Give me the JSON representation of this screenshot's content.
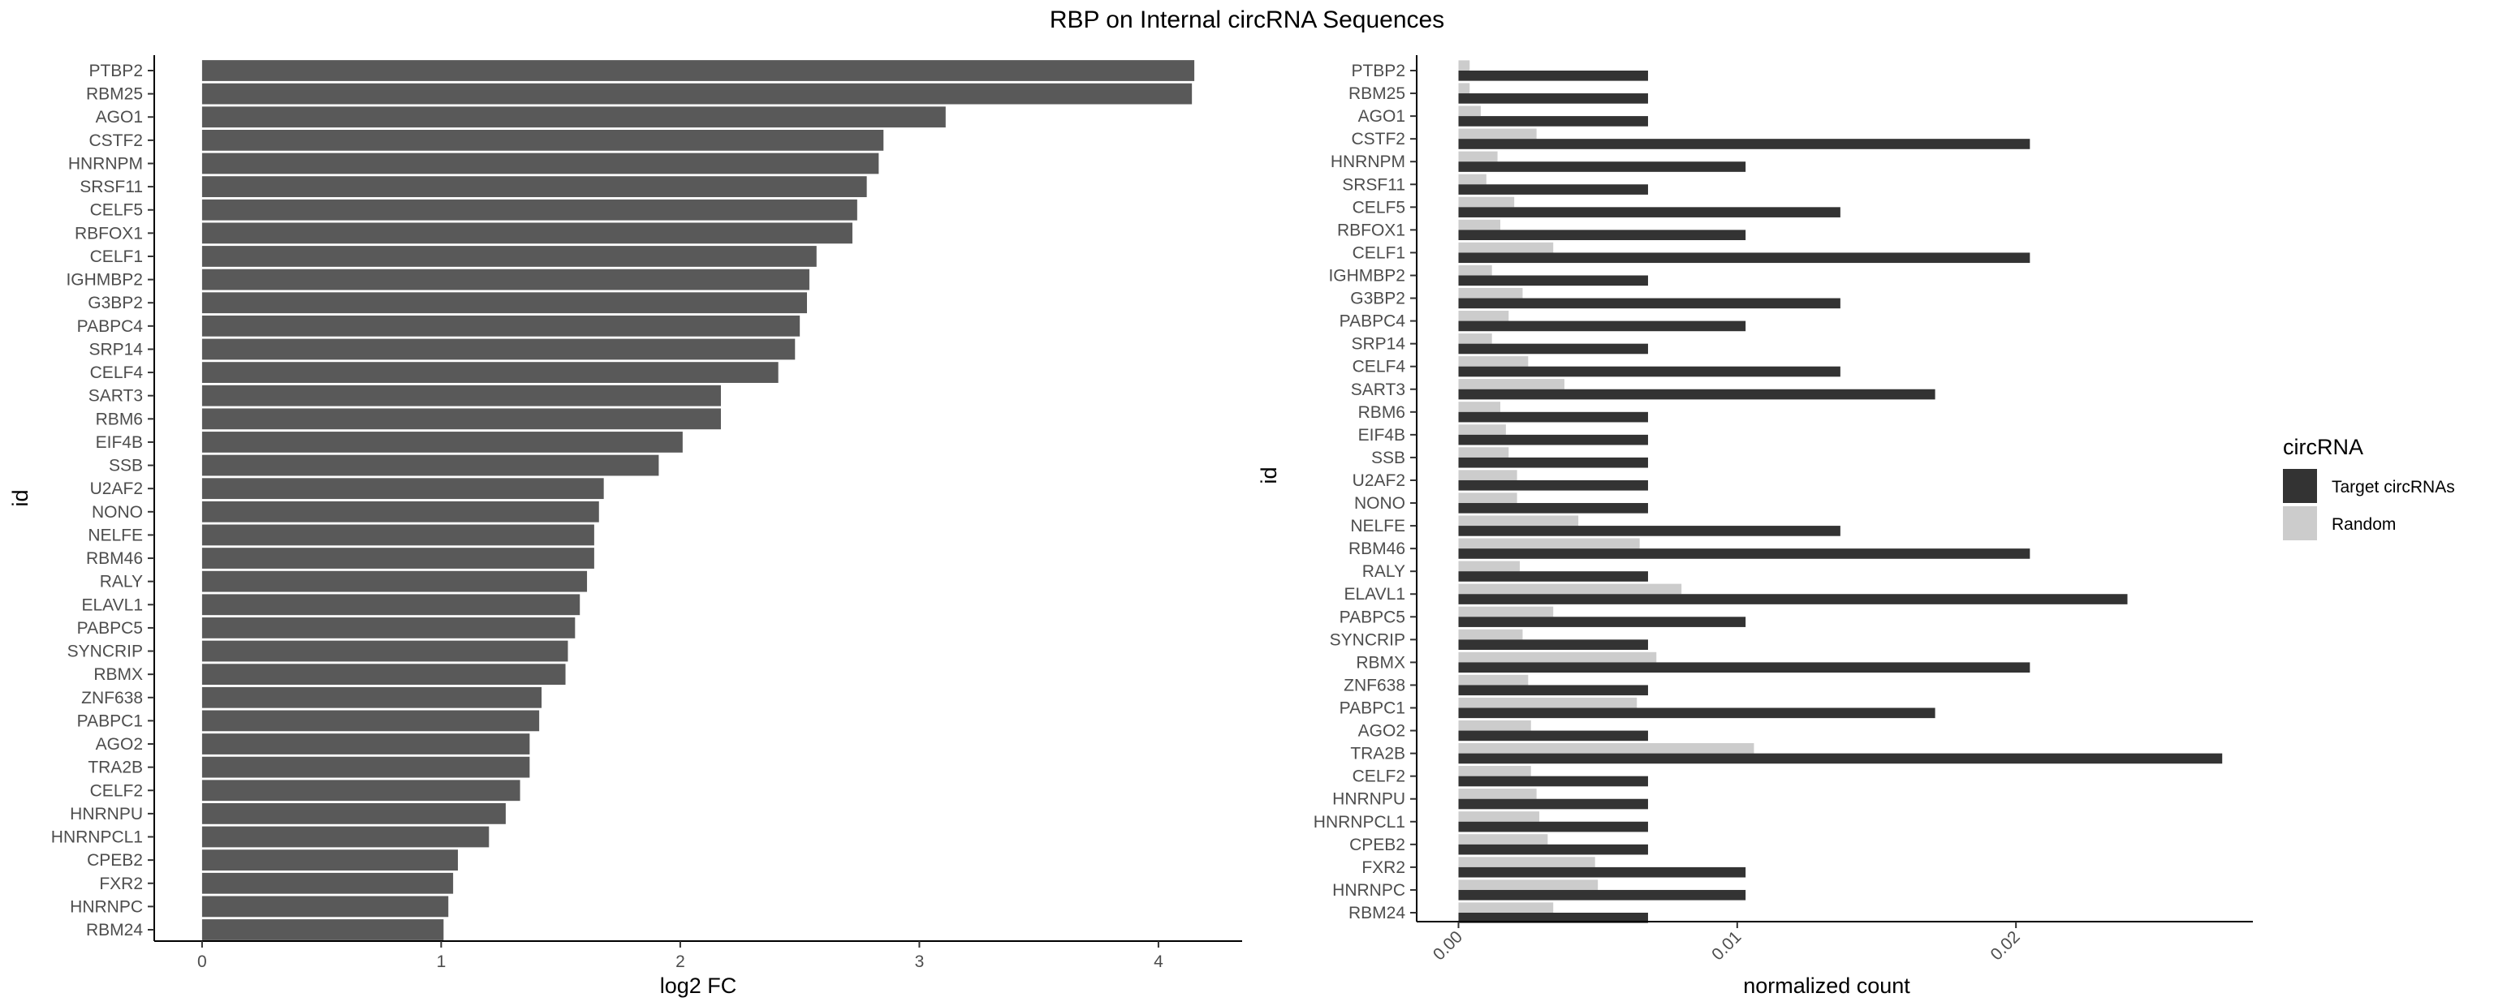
{
  "title": "RBP on Internal circRNA Sequences",
  "chart_data": [
    {
      "type": "bar",
      "orientation": "horizontal",
      "title": "",
      "xlabel": "log2 FC",
      "ylabel": "id",
      "xlim": [
        -0.2,
        4.35
      ],
      "xticks": [
        "0",
        "1",
        "2",
        "3",
        "4"
      ],
      "bar_color": "#595959",
      "categories": [
        "PTBP2",
        "RBM25",
        "AGO1",
        "CSTF2",
        "HNRNPM",
        "SRSF11",
        "CELF5",
        "RBFOX1",
        "CELF1",
        "IGHMBP2",
        "G3BP2",
        "PABPC4",
        "SRP14",
        "CELF4",
        "SART3",
        "RBM6",
        "EIF4B",
        "SSB",
        "U2AF2",
        "NONO",
        "NELFE",
        "RBM46",
        "RALY",
        "ELAVL1",
        "PABPC5",
        "SYNCRIP",
        "RBMX",
        "ZNF638",
        "PABPC1",
        "AGO2",
        "TRA2B",
        "CELF2",
        "HNRNPU",
        "HNRNPCL1",
        "CPEB2",
        "FXR2",
        "HNRNPC",
        "RBM24"
      ],
      "values": [
        4.15,
        4.14,
        3.11,
        2.85,
        2.83,
        2.78,
        2.74,
        2.72,
        2.57,
        2.54,
        2.53,
        2.5,
        2.48,
        2.41,
        2.17,
        2.17,
        2.01,
        1.91,
        1.68,
        1.66,
        1.64,
        1.64,
        1.61,
        1.58,
        1.56,
        1.53,
        1.52,
        1.42,
        1.41,
        1.37,
        1.37,
        1.33,
        1.27,
        1.2,
        1.07,
        1.05,
        1.03,
        1.01
      ],
      "grid": false
    },
    {
      "type": "bar",
      "orientation": "horizontal",
      "title": "",
      "xlabel": "normalized count",
      "ylabel": "id",
      "xlim": [
        -0.0015,
        0.0285
      ],
      "xticks": [
        "0.00",
        "0.01",
        "0.02"
      ],
      "legend_title": "circRNA",
      "legend_position": "right",
      "categories": [
        "PTBP2",
        "RBM25",
        "AGO1",
        "CSTF2",
        "HNRNPM",
        "SRSF11",
        "CELF5",
        "RBFOX1",
        "CELF1",
        "IGHMBP2",
        "G3BP2",
        "PABPC4",
        "SRP14",
        "CELF4",
        "SART3",
        "RBM6",
        "EIF4B",
        "SSB",
        "U2AF2",
        "NONO",
        "NELFE",
        "RBM46",
        "RALY",
        "ELAVL1",
        "PABPC5",
        "SYNCRIP",
        "RBMX",
        "ZNF638",
        "PABPC1",
        "AGO2",
        "TRA2B",
        "CELF2",
        "HNRNPU",
        "HNRNPCL1",
        "CPEB2",
        "FXR2",
        "HNRNPC",
        "RBM24"
      ],
      "series": [
        {
          "name": "Target circRNAs",
          "color": "#333333",
          "values": [
            0.0068,
            0.0068,
            0.0068,
            0.0205,
            0.0103,
            0.0068,
            0.0137,
            0.0103,
            0.0205,
            0.0068,
            0.0137,
            0.0103,
            0.0068,
            0.0137,
            0.0171,
            0.0068,
            0.0068,
            0.0068,
            0.0068,
            0.0068,
            0.0137,
            0.0205,
            0.0068,
            0.024,
            0.0103,
            0.0068,
            0.0205,
            0.0068,
            0.0171,
            0.0068,
            0.0274,
            0.0068,
            0.0068,
            0.0068,
            0.0068,
            0.0103,
            0.0103,
            0.0068
          ]
        },
        {
          "name": "Random",
          "color": "#cccccc",
          "values": [
            0.0004,
            0.0004,
            0.0008,
            0.0028,
            0.0014,
            0.001,
            0.002,
            0.0015,
            0.0034,
            0.0012,
            0.0023,
            0.0018,
            0.0012,
            0.0025,
            0.0038,
            0.0015,
            0.0017,
            0.0018,
            0.0021,
            0.0021,
            0.0043,
            0.0065,
            0.0022,
            0.008,
            0.0034,
            0.0023,
            0.0071,
            0.0025,
            0.0064,
            0.0026,
            0.0106,
            0.0026,
            0.0028,
            0.0029,
            0.0032,
            0.0049,
            0.005,
            0.0034
          ]
        }
      ],
      "grid": false
    }
  ]
}
